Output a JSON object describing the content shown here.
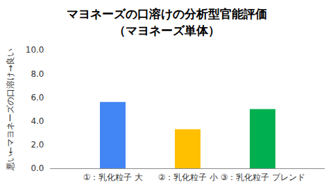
{
  "chart_data": {
    "type": "bar",
    "title": "マヨネーズの口溶けの分析型官能評価",
    "subtitle": "（マヨネーズ単体）",
    "y_label": "悪い←マヨネーズの口溶け→良い",
    "categories": [
      "①：乳化粒子 大",
      "②：乳化粒子 小",
      "③：乳化粒子 ブレンド"
    ],
    "values": [
      5.6,
      3.3,
      5.0
    ],
    "colors": [
      "#4285f4",
      "#ffc000",
      "#00b050"
    ],
    "ylim": [
      0,
      10
    ],
    "yticks": [
      {
        "value": 0,
        "label": "0.0"
      },
      {
        "value": 2,
        "label": "2.0"
      },
      {
        "value": 4,
        "label": "4.0"
      },
      {
        "value": 6,
        "label": "6.0"
      },
      {
        "value": 8,
        "label": "8.0"
      },
      {
        "value": 10,
        "label": "10.0"
      }
    ],
    "grid": false
  }
}
